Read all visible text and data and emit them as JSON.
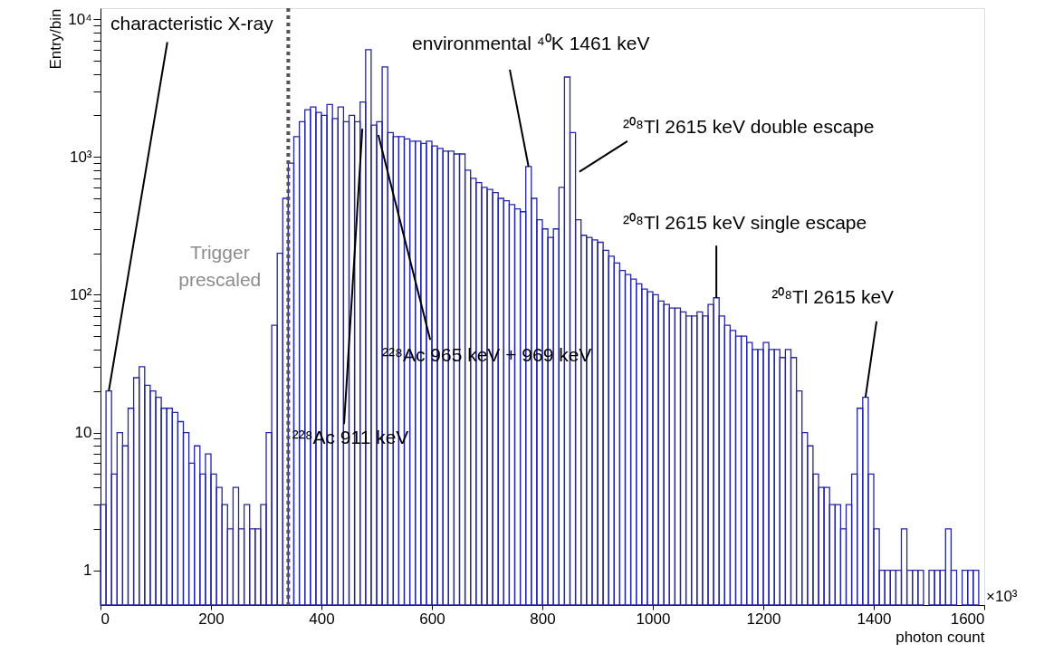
{
  "chart_data": {
    "type": "histogram",
    "xlabel": "photon count",
    "ylabel": "Entry/bin",
    "color": "#2424a8",
    "bins": [
      0,
      10,
      20,
      30,
      40,
      50,
      60,
      70,
      80,
      90,
      100,
      110,
      120,
      130,
      140,
      150,
      160,
      170,
      180,
      190,
      200,
      210,
      220,
      230,
      240,
      250,
      260,
      270,
      280,
      290,
      300,
      310,
      320,
      330,
      340,
      350,
      360,
      370,
      380,
      390,
      400,
      410,
      420,
      430,
      440,
      450,
      460,
      470,
      480,
      490,
      500,
      510,
      520,
      530,
      540,
      550,
      560,
      570,
      580,
      590,
      600,
      610,
      620,
      630,
      640,
      650,
      660,
      670,
      680,
      690,
      700,
      710,
      720,
      730,
      740,
      750,
      760,
      770,
      780,
      790,
      800,
      810,
      820,
      830,
      840,
      850,
      860,
      870,
      880,
      890,
      900,
      910,
      920,
      930,
      940,
      950,
      960,
      970,
      980,
      990,
      1000,
      1010,
      1020,
      1030,
      1040,
      1050,
      1060,
      1070,
      1080,
      1090,
      1100,
      1110,
      1120,
      1130,
      1140,
      1150,
      1160,
      1170,
      1180,
      1190,
      1200,
      1210,
      1220,
      1230,
      1240,
      1250,
      1260,
      1270,
      1280,
      1290,
      1300,
      1310,
      1320,
      1330,
      1340,
      1350,
      1360,
      1370,
      1380,
      1390,
      1400,
      1410,
      1420,
      1430,
      1440,
      1450,
      1460,
      1470,
      1480,
      1490,
      1500,
      1510,
      1520,
      1530,
      1540,
      1550,
      1560,
      1570,
      1580,
      1590,
      1600
    ],
    "values": [
      3,
      20,
      5,
      10,
      8,
      15,
      25,
      30,
      22,
      20,
      18,
      15,
      15,
      14,
      12,
      10,
      6,
      8,
      5,
      7,
      5,
      4,
      3,
      2,
      4,
      2,
      3,
      2,
      2,
      3,
      10,
      60,
      200,
      500,
      900,
      1400,
      1800,
      2200,
      2300,
      2100,
      2000,
      2400,
      1900,
      2300,
      1800,
      2000,
      1800,
      2500,
      6000,
      1700,
      1800,
      4500,
      1500,
      1400,
      1400,
      1350,
      1300,
      1300,
      1250,
      1300,
      1200,
      1150,
      1100,
      1100,
      1050,
      1050,
      800,
      700,
      650,
      600,
      580,
      550,
      500,
      480,
      450,
      420,
      400,
      850,
      500,
      350,
      300,
      260,
      300,
      600,
      3800,
      1500,
      350,
      270,
      260,
      250,
      240,
      210,
      190,
      170,
      150,
      140,
      130,
      120,
      110,
      105,
      100,
      90,
      85,
      80,
      80,
      75,
      70,
      70,
      75,
      70,
      85,
      95,
      70,
      60,
      55,
      50,
      50,
      45,
      40,
      40,
      45,
      40,
      40,
      35,
      40,
      35,
      20,
      10,
      8,
      5,
      4,
      4,
      3,
      3,
      2,
      3,
      5,
      15,
      18,
      5,
      2,
      1,
      1,
      1,
      1,
      2,
      1,
      1,
      1,
      null,
      1,
      1,
      1,
      2,
      1,
      null,
      1,
      1,
      1,
      null
    ],
    "log": "y",
    "xlim": [
      0,
      1600
    ],
    "xticks": [
      0,
      200,
      400,
      600,
      800,
      1000,
      1200,
      1400,
      1600
    ],
    "ylim": [
      0.56,
      12000
    ],
    "yticks": [
      1,
      {
        "value": 2,
        "label": null
      },
      {
        "value": 3,
        "label": null
      },
      {
        "value": 4,
        "label": null
      },
      {
        "value": 5,
        "label": null
      },
      {
        "value": 6,
        "label": null
      },
      {
        "value": 7,
        "label": null
      },
      {
        "value": 8,
        "label": null
      },
      {
        "value": 9,
        "label": null
      },
      10,
      {
        "value": 20,
        "label": null
      },
      {
        "value": 30,
        "label": null
      },
      {
        "value": 40,
        "label": null
      },
      {
        "value": 50,
        "label": null
      },
      {
        "value": 60,
        "label": null
      },
      {
        "value": 70,
        "label": null
      },
      {
        "value": 80,
        "label": null
      },
      {
        "value": 90,
        "label": null
      },
      {
        "value": 100,
        "label": "10²"
      },
      {
        "value": 200,
        "label": null
      },
      {
        "value": 300,
        "label": null
      },
      {
        "value": 400,
        "label": null
      },
      {
        "value": 500,
        "label": null
      },
      {
        "value": 600,
        "label": null
      },
      {
        "value": 700,
        "label": null
      },
      {
        "value": 800,
        "label": null
      },
      {
        "value": 900,
        "label": null
      },
      {
        "value": 1000,
        "label": "10³"
      },
      {
        "value": 2000,
        "label": null
      },
      {
        "value": 3000,
        "label": null
      },
      {
        "value": 4000,
        "label": null
      },
      {
        "value": 5000,
        "label": null
      },
      {
        "value": 6000,
        "label": null
      },
      {
        "value": 7000,
        "label": null
      },
      {
        "value": 8000,
        "label": null
      },
      {
        "value": 9000,
        "label": null
      },
      {
        "value": 10000,
        "label": "10⁴"
      }
    ],
    "grid": false,
    "ref_lines": [
      {
        "axis": "x",
        "value": 340,
        "label": null,
        "color": "#555555",
        "line_style": "dotted"
      }
    ],
    "annotations": [
      {
        "text": "characteristic X-ray",
        "x": 15,
        "y": 20
      },
      "Trigger prescaled",
      {
        "text": "²²⁸Ac 911 keV",
        "x": 474,
        "y": 1600
      },
      {
        "text": "²²⁸Ac 965 keV + 969 keV",
        "x": 503,
        "y": 1440
      },
      {
        "text": "environmental ⁴⁰K 1461 keV",
        "x": 775,
        "y": 850
      },
      {
        "text": "²⁰⁸Tl 2615 keV double escape",
        "x": 867,
        "y": 780
      },
      {
        "text": "²⁰⁸Tl 2615 keV single escape",
        "x": 1115,
        "y": 95
      },
      {
        "text": "²⁰⁸Tl 2615 keV",
        "x": 1385,
        "y": 18
      },
      "×10³"
    ]
  }
}
